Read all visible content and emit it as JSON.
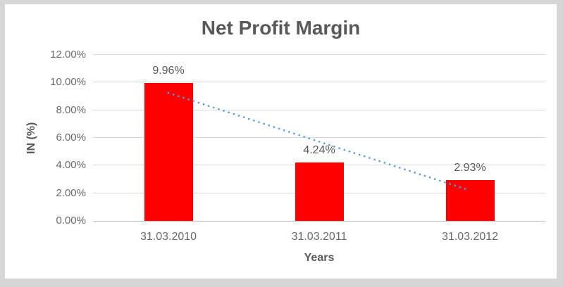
{
  "window": {
    "background_color": "#d6d6d6",
    "chart_background_color": "#ffffff"
  },
  "chart_data": {
    "type": "bar",
    "title": "Net Profit Margin",
    "categories": [
      "31.03.2010",
      "31.03.2011",
      "31.03.2012"
    ],
    "values": [
      9.96,
      4.24,
      2.93
    ],
    "data_labels": [
      "9.96%",
      "4.24%",
      "2.93%"
    ],
    "xlabel": "Years",
    "ylabel": "IN (%)",
    "ylim": [
      0,
      12
    ],
    "ytick_labels": [
      "0.00%",
      "2.00%",
      "4.00%",
      "6.00%",
      "8.00%",
      "10.00%",
      "12.00%"
    ],
    "grid": true,
    "legend": "none",
    "bar_color": "#ff0000",
    "gridline_color": "#d9d9d9",
    "axis_line_color": "#bfbfbf",
    "text_color": "#595959",
    "trendline": {
      "style": "dotted",
      "color": "#5b9bd5",
      "from_category_index": 0,
      "to_category_index": 2,
      "start_value": 9.25,
      "end_value": 2.2
    }
  }
}
